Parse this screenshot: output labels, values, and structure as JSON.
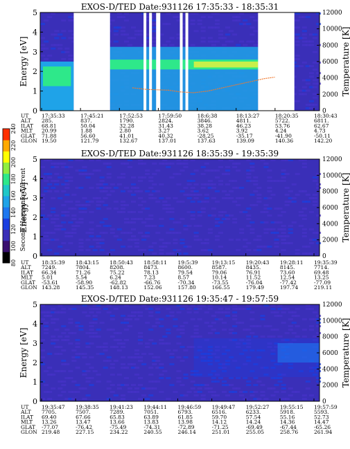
{
  "colors": {
    "background": "#3a2fb8",
    "low": "#1a3fe0",
    "mid": "#1fa3e8",
    "high": "#2ee88a",
    "peak": "#c8f04a",
    "temperature_trace": "#f07a30",
    "gap": "#ffffff",
    "colorbar": [
      "#000000",
      "#3a1070",
      "#3a2fb8",
      "#1a3fe0",
      "#1e78f0",
      "#1fa3e8",
      "#20c8c8",
      "#2ee88a",
      "#90ee40",
      "#ffff00",
      "#ffaa00",
      "#ff3000"
    ]
  },
  "chart_data": [
    {
      "type": "heatmap",
      "title": "EXOS-D/TED   Date:931126   17:35:33 - 18:35:31",
      "ylabel": "Energy [eV]",
      "y2label": "Temperature [K]",
      "ylim": [
        0,
        5
      ],
      "y2lim": [
        0,
        12000
      ],
      "yticks": [
        "0",
        "1",
        "2",
        "3",
        "4",
        "5"
      ],
      "y2ticks": [
        "0",
        "2000",
        "4000",
        "6000",
        "8000",
        "10000",
        "12000"
      ],
      "data_gaps": [
        [
          0.12,
          0.25
        ],
        [
          0.37,
          0.38
        ],
        [
          0.39,
          0.4
        ],
        [
          0.415,
          0.43
        ],
        [
          0.5,
          0.51
        ],
        [
          0.52,
          0.53
        ],
        [
          0.78,
          0.91
        ]
      ],
      "temperature_trace": {
        "x": [
          0.33,
          0.38,
          0.42,
          0.46,
          0.5,
          0.55,
          0.6,
          0.64,
          0.68,
          0.72,
          0.76,
          0.8,
          0.84
        ],
        "y": [
          2800,
          2600,
          2550,
          2500,
          2300,
          2200,
          2400,
          2700,
          3000,
          3300,
          3600,
          3900,
          4100
        ]
      },
      "ephemeris_labels": [
        "UT",
        "ALT",
        "ILAT",
        "MLT",
        "GLAT",
        "GLON"
      ],
      "ephemeris_columns": [
        [
          "17:35:33",
          "285.",
          "68.81",
          "20.99",
          "71.88",
          "19.50"
        ],
        [
          "17:45:21",
          "837.",
          "50.04",
          "1.88",
          "56.60",
          "121.79"
        ],
        [
          "17:52:53",
          "1790.",
          "32.28",
          "2.80",
          "41.01",
          "132.67"
        ],
        [
          "17:59:50",
          "2824.",
          "31.43",
          "3.27",
          "40.32",
          "137.01"
        ],
        [
          "18:6:38",
          "3846.",
          "38.28",
          "3.62",
          "-28.25",
          "137.63"
        ],
        [
          "18:13:27",
          "4811.",
          "46.23",
          "3.92",
          "-35.17",
          "139.09"
        ],
        [
          "18:20:35",
          "5722.",
          "53.76",
          "4.24",
          "-41.90",
          "140.36"
        ],
        [
          "18:30:43",
          "6811.",
          "62.67",
          "4.73",
          "-50.11",
          "142.20"
        ]
      ]
    },
    {
      "type": "heatmap",
      "title": "EXOS-D/TED   Date:931126   18:35:39 - 19:35:39",
      "ylabel": "Energy [eV]",
      "y2label": "Temperature [K]",
      "ylim": [
        0,
        5
      ],
      "y2lim": [
        0,
        12000
      ],
      "yticks": [
        "0",
        "1",
        "2",
        "3",
        "4",
        "5"
      ],
      "y2ticks": [
        "0",
        "2000",
        "4000",
        "6000",
        "8000",
        "10000",
        "12000"
      ],
      "ephemeris_labels": [
        "UT",
        "ALT",
        "ILAT",
        "MLT",
        "GLAT",
        "GLON"
      ],
      "ephemeris_columns": [
        [
          "18:35:39",
          "7249.",
          "66.34",
          "5.01",
          "-53.61",
          "143.28"
        ],
        [
          "18:43:15",
          "7804.",
          "71.26",
          "5.54",
          "-58.90",
          "145.35"
        ],
        [
          "18:50:43",
          "8208.",
          "75.22",
          "6.24",
          "-62.82",
          "148.13"
        ],
        [
          "18:58:11",
          "8473.",
          "78.13",
          "7.23",
          "-66.76",
          "152.06"
        ],
        [
          "19:5:39",
          "8600.",
          "79.54",
          "8.57",
          "-70.34",
          "157.80"
        ],
        [
          "19:13:15",
          "8587.",
          "79.06",
          "10.14",
          "-73.55",
          "166.55"
        ],
        [
          "19:20:43",
          "8435.",
          "76.91",
          "11.52",
          "-76.04",
          "179.49"
        ],
        [
          "19:28:11",
          "8145.",
          "73.60",
          "12.54",
          "-77.42",
          "197.74"
        ],
        [
          "19:35:39",
          "7714.",
          "69.48",
          "13.25",
          "-77.09",
          "219.11"
        ]
      ]
    },
    {
      "type": "heatmap",
      "title": "EXOS-D/TED   Date:931126   19:35:47 - 19:57:59",
      "ylabel": "Energy [eV]",
      "y2label": "Temperature [K]",
      "ylim": [
        0,
        5
      ],
      "y2lim": [
        0,
        12000
      ],
      "yticks": [
        "0",
        "1",
        "2",
        "3",
        "4",
        "5"
      ],
      "y2ticks": [
        "0",
        "2000",
        "4000",
        "6000",
        "8000",
        "10000",
        "12000"
      ],
      "ephemeris_labels": [
        "UT",
        "ALT",
        "ILAT",
        "MLT",
        "GLAT",
        "GLON"
      ],
      "ephemeris_columns": [
        [
          "19:35:47",
          "7705.",
          "69.40",
          "13.26",
          "-77.07",
          "219.48"
        ],
        [
          "19:38:35",
          "7507.",
          "67.66",
          "13.47",
          "-76.42",
          "227.15"
        ],
        [
          "19:41:23",
          "7289.",
          "65.83",
          "13.66",
          "-75.49",
          "234.22"
        ],
        [
          "19:44:11",
          "7051.",
          "63.89",
          "13.83",
          "-74.31",
          "240.55"
        ],
        [
          "19:46:59",
          "6793.",
          "61.85",
          "13.98",
          "-72.89",
          "246.14"
        ],
        [
          "19:49:47",
          "6516.",
          "59.70",
          "14.12",
          "-71.25",
          "251.01"
        ],
        [
          "19:52:27",
          "6233.",
          "57.54",
          "14.24",
          "-69.49",
          "255.05"
        ],
        [
          "19:55:15",
          "5918.",
          "55.16",
          "14.36",
          "-67.44",
          "258.76"
        ],
        [
          "19:57:59",
          "5593.",
          "52.73",
          "14.47",
          "-65.26",
          "261.94"
        ]
      ]
    }
  ],
  "colorbar": {
    "label": "Second Harmonic Current",
    "ticks": [
      "80",
      "100",
      "120",
      "140",
      "160",
      "180",
      "200",
      "220",
      "240"
    ]
  }
}
